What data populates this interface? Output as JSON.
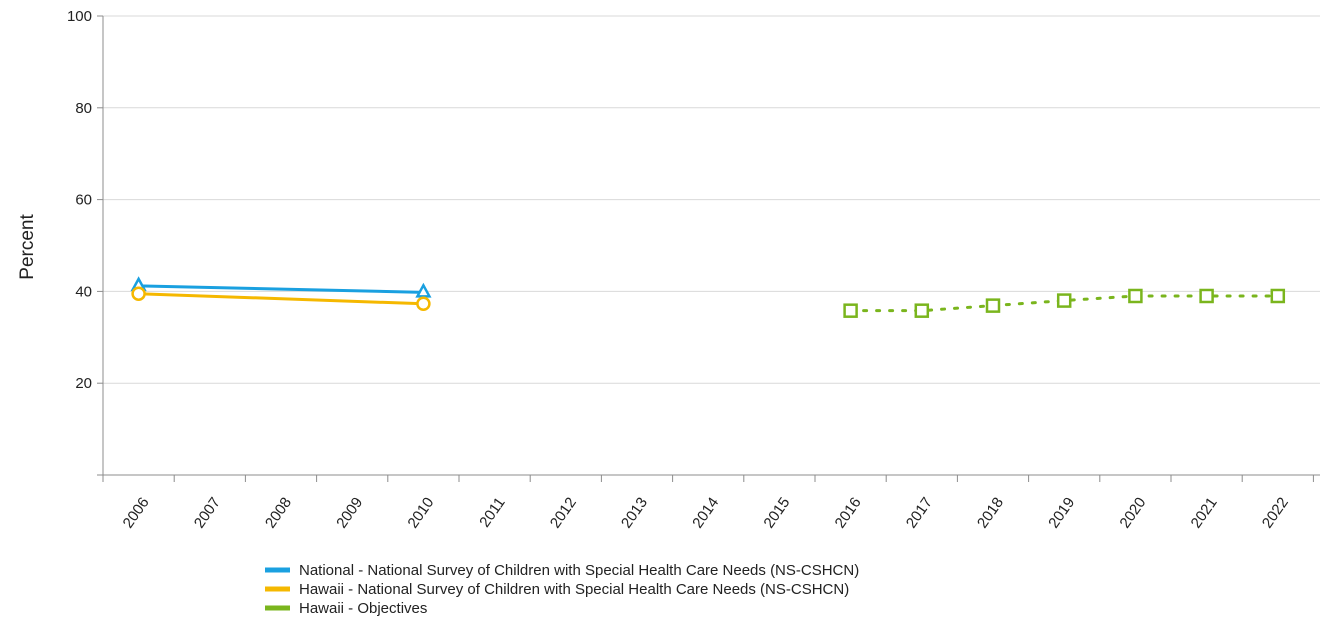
{
  "chart_data": {
    "type": "line",
    "ylabel": "Percent",
    "xlabel": "",
    "ylim": [
      0,
      100
    ],
    "yticks": [
      20,
      40,
      60,
      80,
      100
    ],
    "categories": [
      "2006",
      "2007",
      "2008",
      "2009",
      "2010",
      "2011",
      "2012",
      "2013",
      "2014",
      "2015",
      "2016",
      "2017",
      "2018",
      "2019",
      "2020",
      "2021",
      "2022"
    ],
    "grid": true,
    "legend_position": "bottom",
    "series": [
      {
        "name": "National - National Survey of Children with Special Health Care Needs (NS-CSHCN)",
        "color": "#1aa0e0",
        "marker": "triangle",
        "line_style": "solid",
        "points": [
          {
            "x": "2006",
            "y": 41.2
          },
          {
            "x": "2010",
            "y": 39.8
          }
        ]
      },
      {
        "name": "Hawaii - National Survey of Children with Special Health Care Needs (NS-CSHCN)",
        "color": "#f5b800",
        "marker": "circle",
        "line_style": "solid",
        "points": [
          {
            "x": "2006",
            "y": 39.5
          },
          {
            "x": "2010",
            "y": 37.3
          }
        ]
      },
      {
        "name": "Hawaii - Objectives",
        "color": "#7ab51d",
        "marker": "square",
        "line_style": "dotted",
        "points": [
          {
            "x": "2016",
            "y": 35.8
          },
          {
            "x": "2017",
            "y": 35.8
          },
          {
            "x": "2018",
            "y": 36.9
          },
          {
            "x": "2019",
            "y": 38.0
          },
          {
            "x": "2020",
            "y": 39.0
          },
          {
            "x": "2021",
            "y": 39.0
          },
          {
            "x": "2022",
            "y": 39.0
          }
        ]
      }
    ]
  }
}
